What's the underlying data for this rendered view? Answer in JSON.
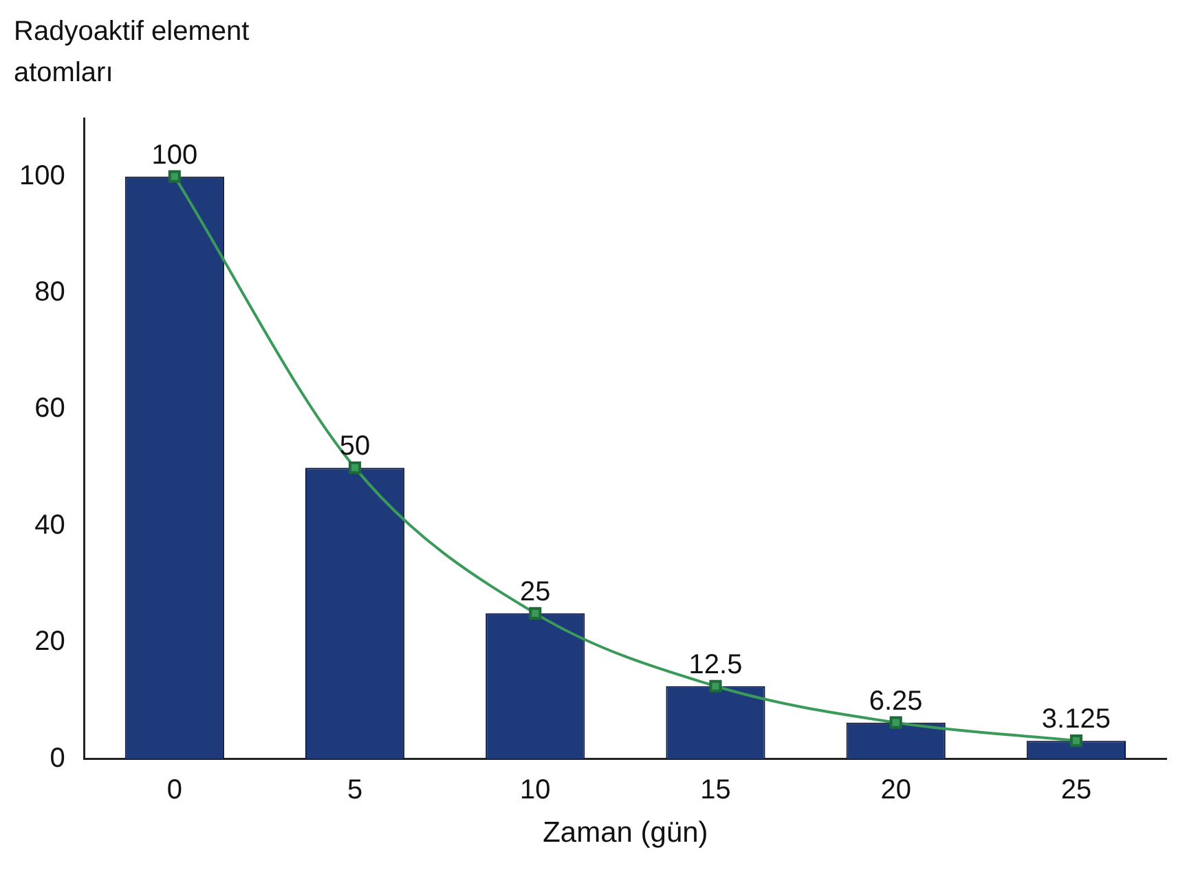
{
  "chart_data": {
    "type": "bar",
    "ylabel": "Radyoaktif element atomları",
    "xlabel": "Zaman (gün)",
    "categories": [
      "0",
      "5",
      "10",
      "15",
      "20",
      "25"
    ],
    "series": [
      {
        "color": "#1f3a7a",
        "values": [
          100,
          50,
          25,
          12.5,
          6.25,
          3.125
        ],
        "value_labels": [
          "100",
          "50",
          "25",
          "12.5",
          "6.25",
          "3.125"
        ]
      },
      {
        "type": "line",
        "color": "#3a9a5a",
        "values": [
          100,
          50,
          25,
          12.5,
          6.25,
          3.125
        ]
      }
    ],
    "ylim": [
      0,
      110
    ],
    "yticks": [
      0,
      20,
      40,
      60,
      80,
      100
    ],
    "grid": false,
    "legend": false,
    "marker": "square",
    "line_style": "solid"
  }
}
